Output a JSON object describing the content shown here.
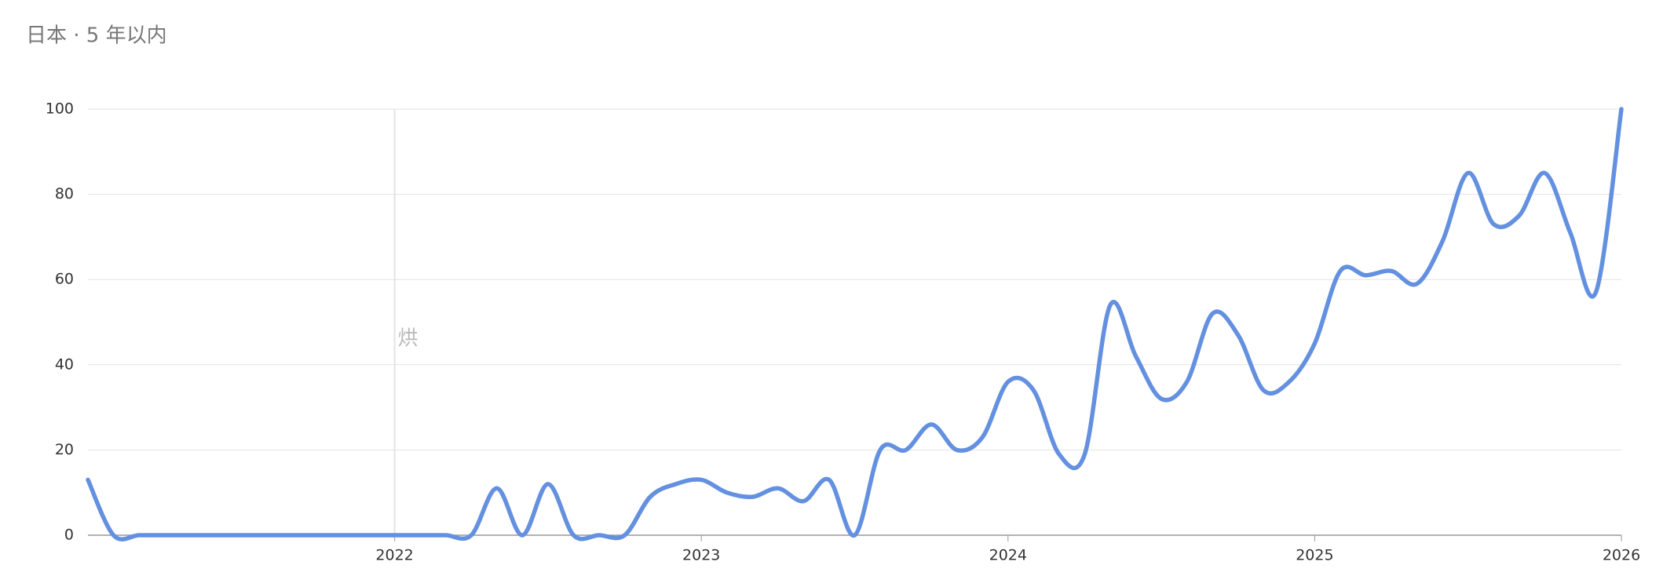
{
  "chart_data": {
    "type": "line",
    "title": "日本 · 5 年以内",
    "annotation": "烘",
    "x": [
      2021.0,
      2021.0833,
      2021.1667,
      2021.25,
      2021.3333,
      2021.4167,
      2021.5,
      2021.5833,
      2021.6667,
      2021.75,
      2021.8333,
      2021.9167,
      2022.0,
      2022.0833,
      2022.1667,
      2022.25,
      2022.3333,
      2022.4167,
      2022.5,
      2022.5833,
      2022.6667,
      2022.75,
      2022.8333,
      2022.9167,
      2023.0,
      2023.0833,
      2023.1667,
      2023.25,
      2023.3333,
      2023.4167,
      2023.5,
      2023.5833,
      2023.6667,
      2023.75,
      2023.8333,
      2023.9167,
      2024.0,
      2024.0833,
      2024.1667,
      2024.25,
      2024.3333,
      2024.4167,
      2024.5,
      2024.5833,
      2024.6667,
      2024.75,
      2024.8333,
      2024.9167,
      2025.0,
      2025.0833,
      2025.1667,
      2025.25,
      2025.3333,
      2025.4167,
      2025.5,
      2025.5833,
      2025.6667,
      2025.75,
      2025.8333,
      2025.9167,
      2026.0
    ],
    "series": [
      {
        "color": "#6490e0",
        "values": [
          13,
          0,
          0,
          0,
          0,
          0,
          0,
          0,
          0,
          0,
          0,
          0,
          0,
          0,
          0,
          0,
          11,
          0,
          12,
          0,
          0,
          0,
          9,
          12,
          13,
          10,
          9,
          11,
          8,
          13,
          0,
          20,
          20,
          26,
          20,
          23,
          36,
          34,
          19,
          19,
          54,
          42,
          32,
          36,
          52,
          47,
          34,
          36,
          45,
          62,
          61,
          62,
          59,
          69,
          85,
          73,
          75,
          85,
          71,
          57,
          100
        ]
      }
    ],
    "xlim": [
      2021.0,
      2026.0
    ],
    "xticks": [
      2022,
      2023,
      2024,
      2025,
      2026
    ],
    "ylim": [
      0,
      100
    ],
    "yticks": [
      0,
      20,
      40,
      60,
      80,
      100
    ],
    "grid": true
  }
}
